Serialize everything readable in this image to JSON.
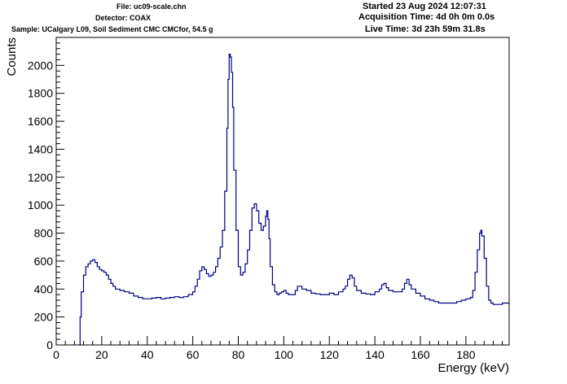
{
  "header": {
    "file": "File: uc09-scale.chn",
    "detector": "Detector: COAX",
    "sample": "Sample: UCalgary L09, Soil Sediment CMC CMCfor, 54.5 g",
    "started": "Started 23 Aug 2024 12:07:31",
    "acquisition": "Acquisition Time: 4d 0h 0m 0.0s",
    "live": "Live Time: 3d 23h 59m 31.8s"
  },
  "chart_data": {
    "type": "line",
    "xlabel": "Energy (keV)",
    "ylabel": "Counts",
    "xlim": [
      0,
      199
    ],
    "ylim": [
      0,
      2200
    ],
    "x_ticks": [
      0,
      20,
      40,
      60,
      80,
      100,
      120,
      140,
      160,
      180
    ],
    "y_ticks": [
      0,
      200,
      400,
      600,
      800,
      1000,
      1200,
      1400,
      1600,
      1800,
      2000
    ],
    "grid": false,
    "line_color": "#000080",
    "series": [
      {
        "x": [
          10,
          10.5,
          11,
          12,
          13,
          14,
          15,
          16,
          17,
          18,
          19,
          20,
          21,
          22,
          23,
          24,
          25,
          26,
          28,
          30,
          32,
          34,
          36,
          38,
          40,
          42,
          44,
          46,
          48,
          50,
          52,
          54,
          56,
          58,
          60,
          61,
          62,
          63,
          64,
          65,
          66,
          67,
          68,
          69,
          70,
          71,
          72,
          73,
          74,
          75,
          75.5,
          76,
          76.5,
          77,
          77.5,
          78,
          79,
          80,
          81,
          82,
          83,
          84,
          85,
          86,
          87,
          88,
          89,
          90,
          91,
          92,
          92.5,
          93,
          93.5,
          94,
          95,
          96,
          97,
          98,
          99,
          100,
          101,
          102,
          104,
          105,
          106,
          108,
          110,
          112,
          114,
          116,
          118,
          120,
          122,
          124,
          126,
          127,
          128,
          129,
          130,
          131,
          132,
          134,
          136,
          138,
          140,
          142,
          143,
          144,
          145,
          146,
          148,
          150,
          152,
          153,
          154,
          155,
          156,
          158,
          160,
          162,
          164,
          166,
          168,
          170,
          172,
          174,
          176,
          178,
          180,
          182,
          183,
          184,
          185,
          186,
          186.5,
          187,
          188,
          189,
          190,
          191,
          192,
          194,
          196,
          198,
          199
        ],
        "y": [
          0,
          200,
          380,
          500,
          560,
          580,
          600,
          610,
          590,
          560,
          540,
          530,
          520,
          500,
          470,
          440,
          420,
          400,
          390,
          380,
          370,
          350,
          340,
          330,
          330,
          335,
          340,
          330,
          335,
          340,
          345,
          340,
          345,
          360,
          380,
          420,
          470,
          530,
          560,
          540,
          510,
          490,
          500,
          520,
          560,
          620,
          700,
          820,
          1100,
          1550,
          1900,
          2080,
          2060,
          1950,
          1700,
          1250,
          820,
          560,
          500,
          520,
          580,
          680,
          820,
          980,
          1010,
          960,
          870,
          820,
          850,
          920,
          960,
          900,
          760,
          560,
          430,
          380,
          360,
          370,
          380,
          390,
          370,
          360,
          360,
          390,
          420,
          400,
          390,
          370,
          365,
          360,
          360,
          370,
          360,
          380,
          400,
          420,
          470,
          500,
          480,
          420,
          390,
          370,
          365,
          360,
          380,
          400,
          430,
          440,
          410,
          390,
          380,
          380,
          400,
          440,
          470,
          430,
          400,
          370,
          350,
          330,
          320,
          310,
          300,
          300,
          300,
          300,
          310,
          320,
          330,
          340,
          390,
          520,
          680,
          800,
          820,
          780,
          620,
          420,
          320,
          300,
          290,
          290,
          300,
          300,
          300
        ]
      }
    ]
  }
}
